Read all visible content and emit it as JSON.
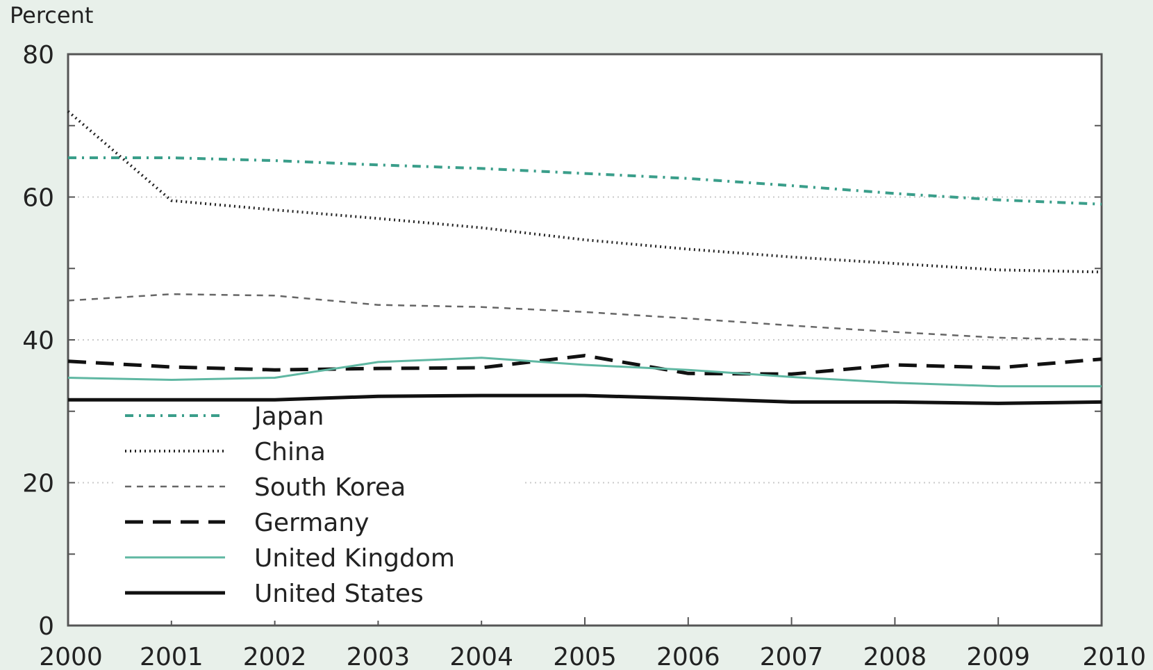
{
  "chart_data": {
    "type": "line",
    "title": "",
    "ylabel": "Percent",
    "xlabel": "",
    "x": [
      2000,
      2001,
      2002,
      2003,
      2004,
      2005,
      2006,
      2007,
      2008,
      2009,
      2010
    ],
    "x_tick_labels": [
      "2000",
      "2001",
      "2002",
      "2003",
      "2004",
      "2005",
      "2006",
      "2007",
      "2008",
      "2009",
      "2010"
    ],
    "y_tick_labels": [
      "0",
      "20",
      "40",
      "60",
      "80"
    ],
    "ylim": [
      0,
      80
    ],
    "xlim": [
      2000,
      2010
    ],
    "grid": "dotted horizontal at labeled ticks",
    "legend_position": "bottom-left",
    "series": [
      {
        "name": "Japan",
        "color": "#3a9e8a",
        "style": "dash-dot",
        "values": [
          65.5,
          65.5,
          65.1,
          64.5,
          64.0,
          63.3,
          62.6,
          61.6,
          60.5,
          59.6,
          59.0
        ]
      },
      {
        "name": "China",
        "color": "#222222",
        "style": "dotted",
        "values": [
          72.0,
          59.5,
          58.2,
          57.0,
          55.7,
          54.0,
          52.7,
          51.6,
          50.7,
          49.8,
          49.5
        ]
      },
      {
        "name": "South Korea",
        "color": "#666666",
        "style": "short-dash",
        "values": [
          45.5,
          46.4,
          46.2,
          44.9,
          44.6,
          43.9,
          43.0,
          42.0,
          41.1,
          40.3,
          40.0
        ]
      },
      {
        "name": "Germany",
        "color": "#111111",
        "style": "long-dash",
        "values": [
          37.0,
          36.2,
          35.8,
          36.0,
          36.1,
          37.8,
          35.3,
          35.2,
          36.5,
          36.1,
          37.3
        ]
      },
      {
        "name": "United Kingdom",
        "color": "#5fb7a2",
        "style": "solid-thin",
        "values": [
          34.7,
          34.4,
          34.7,
          36.9,
          37.5,
          36.5,
          35.8,
          34.8,
          34.0,
          33.5,
          33.5
        ]
      },
      {
        "name": "United States",
        "color": "#111111",
        "style": "solid-thick",
        "values": [
          31.6,
          31.6,
          31.6,
          32.1,
          32.2,
          32.2,
          31.8,
          31.3,
          31.3,
          31.1,
          31.3
        ]
      }
    ]
  }
}
